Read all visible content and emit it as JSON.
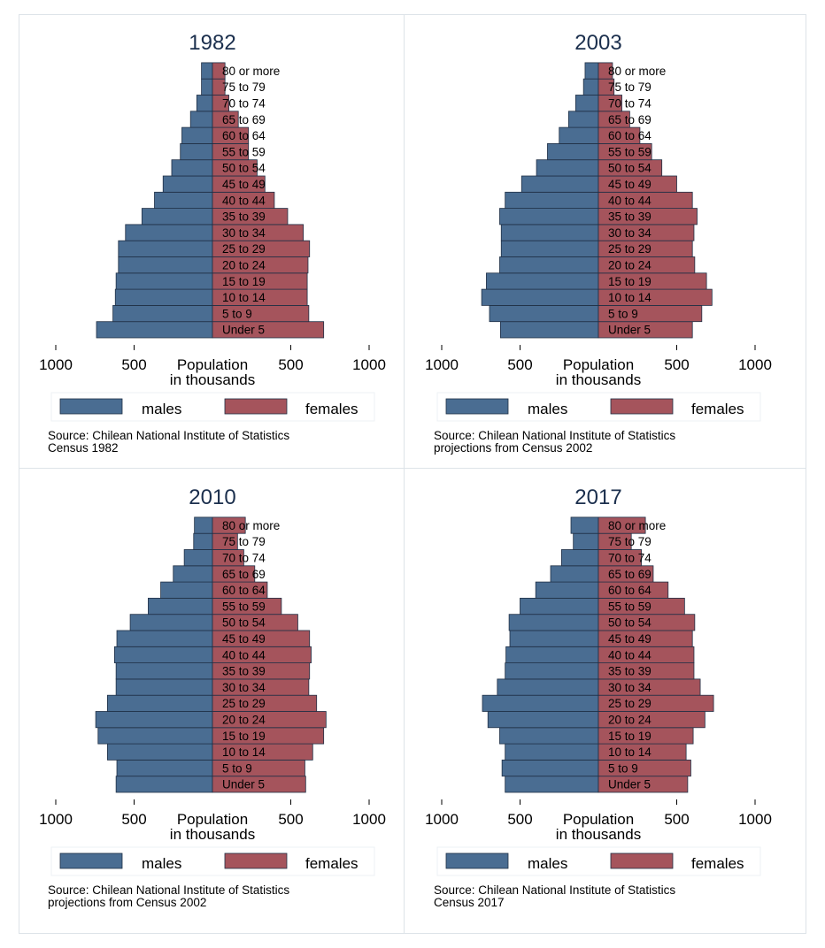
{
  "colors": {
    "males": "#4a6d92",
    "females": "#a5545c",
    "title": "#1b2f4d",
    "stroke": "#1f2f45"
  },
  "chart_data": [
    {
      "type": "bar",
      "orientation": "population-pyramid",
      "title": "1982",
      "categories": [
        "Under 5",
        "5 to 9",
        "10 to 14",
        "15 to 19",
        "20 to 24",
        "25 to 29",
        "30 to 34",
        "35 to 39",
        "40 to 44",
        "45 to 49",
        "50 to 54",
        "55 to 59",
        "60 to 64",
        "65 to 69",
        "70 to 74",
        "75 to 79",
        "80 or more"
      ],
      "series": [
        {
          "name": "males",
          "values": [
            740,
            635,
            620,
            615,
            600,
            600,
            555,
            450,
            370,
            315,
            260,
            205,
            195,
            140,
            100,
            70,
            70
          ]
        },
        {
          "name": "females",
          "values": [
            710,
            615,
            605,
            605,
            610,
            620,
            580,
            480,
            395,
            335,
            285,
            230,
            230,
            165,
            105,
            80,
            80
          ]
        }
      ],
      "xticks": [
        "1000",
        "500",
        "Population",
        "500",
        "1000"
      ],
      "xlabel_line2": "in thousands",
      "xlim": [
        -1000,
        1000
      ],
      "legend": [
        "males",
        "females"
      ],
      "legend_position": "bottom",
      "note": [
        "Source: Chilean National Institute of Statistics",
        "Census 1982"
      ]
    },
    {
      "type": "bar",
      "orientation": "population-pyramid",
      "title": "2003",
      "categories": [
        "Under 5",
        "5 to 9",
        "10 to 14",
        "15 to 19",
        "20 to 24",
        "25 to 29",
        "30 to 34",
        "35 to 39",
        "40 to 44",
        "45 to 49",
        "50 to 54",
        "55 to 59",
        "60 to 64",
        "65 to 69",
        "70 to 74",
        "75 to 79",
        "80 or more"
      ],
      "series": [
        {
          "name": "males",
          "values": [
            625,
            695,
            745,
            715,
            630,
            620,
            620,
            630,
            595,
            490,
            395,
            325,
            250,
            190,
            145,
            95,
            85
          ]
        },
        {
          "name": "females",
          "values": [
            600,
            660,
            725,
            690,
            615,
            600,
            610,
            630,
            600,
            500,
            405,
            340,
            265,
            200,
            150,
            100,
            90
          ]
        }
      ],
      "xticks": [
        "1000",
        "500",
        "Population",
        "500",
        "1000"
      ],
      "xlabel_line2": "in thousands",
      "xlim": [
        -1000,
        1000
      ],
      "legend": [
        "males",
        "females"
      ],
      "legend_position": "bottom",
      "note": [
        "Source: Chilean National Institute of Statistics",
        "projections from Census 2002"
      ]
    },
    {
      "type": "bar",
      "orientation": "population-pyramid",
      "title": "2010",
      "categories": [
        "Under 5",
        "5 to 9",
        "10 to 14",
        "15 to 19",
        "20 to 24",
        "25 to 29",
        "30 to 34",
        "35 to 39",
        "40 to 44",
        "45 to 49",
        "50 to 54",
        "55 to 59",
        "60 to 64",
        "65 to 69",
        "70 to 74",
        "75 to 79",
        "80 or more"
      ],
      "series": [
        {
          "name": "males",
          "values": [
            615,
            610,
            670,
            730,
            745,
            670,
            615,
            615,
            625,
            610,
            525,
            410,
            330,
            250,
            180,
            120,
            115
          ]
        },
        {
          "name": "females",
          "values": [
            595,
            590,
            640,
            710,
            725,
            665,
            615,
            620,
            630,
            620,
            545,
            440,
            350,
            270,
            200,
            160,
            210
          ]
        }
      ],
      "xticks": [
        "1000",
        "500",
        "Population",
        "500",
        "1000"
      ],
      "xlabel_line2": "in thousands",
      "xlim": [
        -1000,
        1000
      ],
      "legend": [
        "males",
        "females"
      ],
      "legend_position": "bottom",
      "note": [
        "Source: Chilean National Institute of Statistics",
        "projections from Census 2002"
      ]
    },
    {
      "type": "bar",
      "orientation": "population-pyramid",
      "title": "2017",
      "categories": [
        "Under 5",
        "5 to 9",
        "10 to 14",
        "15 to 19",
        "20 to 24",
        "25 to 29",
        "30 to 34",
        "35 to 39",
        "40 to 44",
        "45 to 49",
        "50 to 54",
        "55 to 59",
        "60 to 64",
        "65 to 69",
        "70 to 74",
        "75 to 79",
        "80 or more"
      ],
      "series": [
        {
          "name": "males",
          "values": [
            595,
            615,
            595,
            630,
            705,
            740,
            645,
            595,
            590,
            565,
            570,
            500,
            400,
            305,
            235,
            160,
            175
          ]
        },
        {
          "name": "females",
          "values": [
            570,
            590,
            560,
            605,
            680,
            735,
            650,
            610,
            610,
            600,
            615,
            550,
            445,
            350,
            275,
            210,
            300
          ]
        }
      ],
      "xticks": [
        "1000",
        "500",
        "Population",
        "500",
        "1000"
      ],
      "xlabel_line2": "in thousands",
      "xlim": [
        -1000,
        1000
      ],
      "legend": [
        "males",
        "females"
      ],
      "legend_position": "bottom",
      "note": [
        "Source: Chilean National Institute of Statistics",
        "Census 2017"
      ]
    }
  ]
}
